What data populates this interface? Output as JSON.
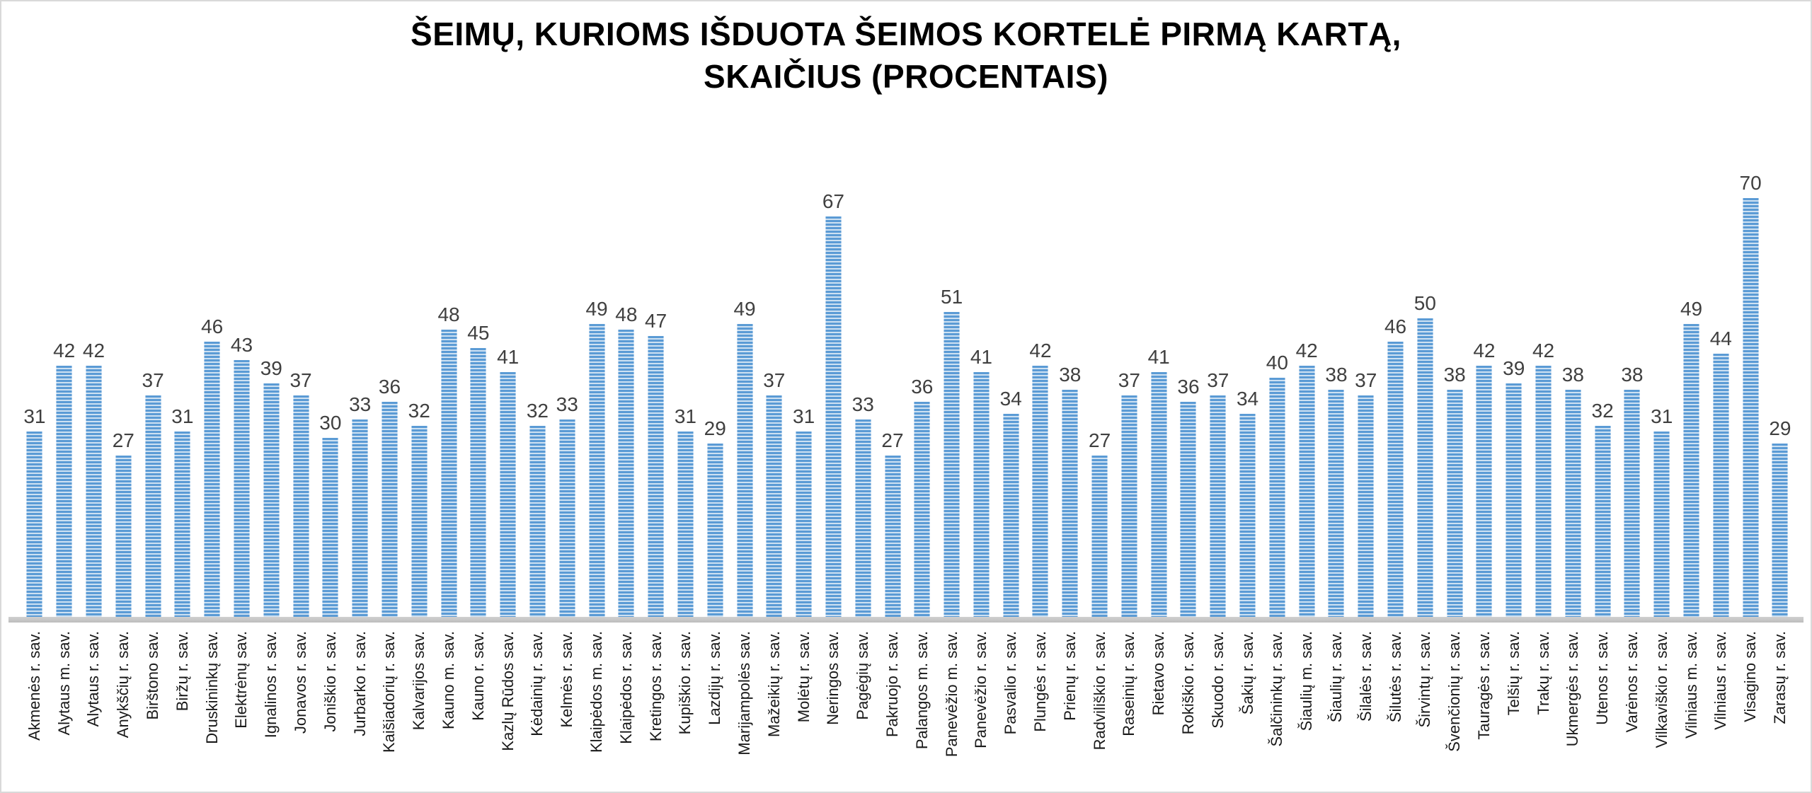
{
  "title": {
    "line1": "ŠEIMŲ, KURIOMS IŠDUOTA ŠEIMOS KORTELĖ PIRMĄ KARTĄ,",
    "line2": "SKAIČIUS (PROCENTAIS)"
  },
  "chart_data": {
    "type": "bar",
    "title": "ŠEIMŲ, KURIOMS IŠDUOTA ŠEIMOS KORTELĖ PIRMĄ KARTĄ, SKAIČIUS (PROCENTAIS)",
    "xlabel": "",
    "ylabel": "",
    "ylim": [
      0,
      75
    ],
    "gridlines": false,
    "legend": null,
    "data_labels": true,
    "category_label_rotation": 90,
    "colors": {
      "bar_stripe_dark": "#5B9BD5",
      "bar_stripe_light": "#CEE1F2",
      "value_label": "#404040",
      "category_label": "#1a1a1a",
      "axis_line": "#C6C6C6"
    },
    "categories": [
      "Akmenės r. sav.",
      "Alytaus m. sav.",
      "Alytaus r. sav.",
      "Anykščių r. sav.",
      "Birštono sav.",
      "Biržų r. sav.",
      "Druskininkų sav.",
      "Elektrėnų sav.",
      "Ignalinos r. sav.",
      "Jonavos r. sav.",
      "Joniškio r. sav.",
      "Jurbarko r. sav.",
      "Kaišiadorių r. sav.",
      "Kalvarijos sav.",
      "Kauno m. sav.",
      "Kauno r. sav.",
      "Kazlų Rūdos sav.",
      "Kėdainių r. sav.",
      "Kelmės r. sav.",
      "Klaipėdos m. sav.",
      "Klaipėdos r. sav.",
      "Kretingos r. sav.",
      "Kupiškio r. sav.",
      "Lazdijų r. sav.",
      "Marijampolės sav.",
      "Mažeikių r. sav.",
      "Molėtų r. sav.",
      "Neringos sav.",
      "Pagėgių sav.",
      "Pakruojo r. sav.",
      "Palangos m. sav.",
      "Panevėžio m. sav.",
      "Panevėžio r. sav.",
      "Pasvalio r. sav.",
      "Plungės r. sav.",
      "Prienų r. sav.",
      "Radviliškio r. sav.",
      "Raseinių r. sav.",
      "Rietavo sav.",
      "Rokiškio r. sav.",
      "Skuodo r. sav.",
      "Šakių r. sav.",
      "Šalčininkų r. sav.",
      "Šiaulių m. sav.",
      "Šiaulių r. sav.",
      "Šilalės r. sav.",
      "Šilutės r. sav.",
      "Širvintų r. sav.",
      "Švenčionių r. sav.",
      "Tauragės r. sav.",
      "Telšių r. sav.",
      "Trakų r. sav.",
      "Ukmergės r. sav.",
      "Utenos r. sav.",
      "Varėnos r. sav.",
      "Vilkaviškio r. sav.",
      "Vilniaus m. sav.",
      "Vilniaus r. sav.",
      "Visagino sav.",
      "Zarasų r. sav."
    ],
    "values": [
      31,
      42,
      42,
      27,
      37,
      31,
      46,
      43,
      39,
      37,
      30,
      33,
      36,
      32,
      48,
      45,
      41,
      32,
      33,
      49,
      48,
      47,
      31,
      29,
      49,
      37,
      31,
      67,
      33,
      27,
      36,
      51,
      41,
      34,
      42,
      38,
      27,
      37,
      41,
      36,
      37,
      34,
      40,
      42,
      38,
      37,
      46,
      50,
      38,
      42,
      39,
      42,
      38,
      32,
      38,
      31,
      49,
      44,
      70,
      29
    ]
  }
}
